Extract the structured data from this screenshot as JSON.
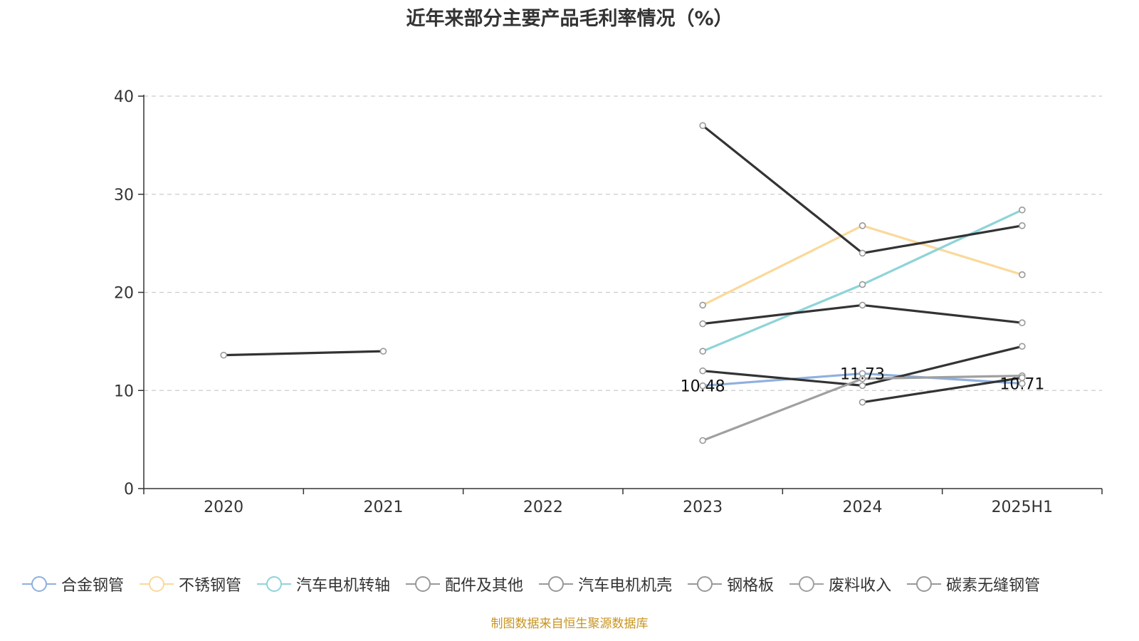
{
  "chart_data": {
    "type": "line",
    "title": "近年来部分主要产品毛利率情况（%）",
    "categories": [
      "2020",
      "2021",
      "2022",
      "2023",
      "2024",
      "2025H1"
    ],
    "ylim": [
      0,
      40
    ],
    "yticks": [
      "0",
      "10",
      "20",
      "30",
      "40"
    ],
    "grid": true,
    "legend_position": "bottom",
    "series": [
      {
        "name": "合金钢管",
        "color": "#8fb0de",
        "values": [
          null,
          null,
          null,
          10.48,
          11.73,
          10.71
        ],
        "labels": [
          null,
          null,
          null,
          "10.48",
          "11.73",
          "10.71"
        ]
      },
      {
        "name": "不锈钢管",
        "color": "#fad99a",
        "values": [
          null,
          null,
          null,
          18.7,
          26.8,
          21.8
        ]
      },
      {
        "name": "汽车电机转轴",
        "color": "#8ed4d8",
        "values": [
          null,
          null,
          null,
          14.0,
          20.8,
          28.4
        ]
      },
      {
        "name": "配件及其他",
        "color": "#333333",
        "values": [
          null,
          null,
          null,
          37.0,
          24.0,
          26.8
        ]
      },
      {
        "name": "汽车电机机壳",
        "color": "#333333",
        "values": [
          null,
          null,
          null,
          16.8,
          18.7,
          16.9
        ]
      },
      {
        "name": "钢格板",
        "color": "#333333",
        "values": [
          null,
          null,
          null,
          12.0,
          10.5,
          14.5
        ]
      },
      {
        "name": "废料收入",
        "color": "#a0a0a0",
        "values": [
          null,
          null,
          null,
          4.9,
          11.2,
          11.5
        ]
      },
      {
        "name": "碳素无缝钢管",
        "color": "#333333",
        "values": [
          13.6,
          14.0,
          null,
          null,
          8.8,
          11.3
        ]
      }
    ]
  },
  "source_note": "制图数据来自恒生聚源数据库"
}
